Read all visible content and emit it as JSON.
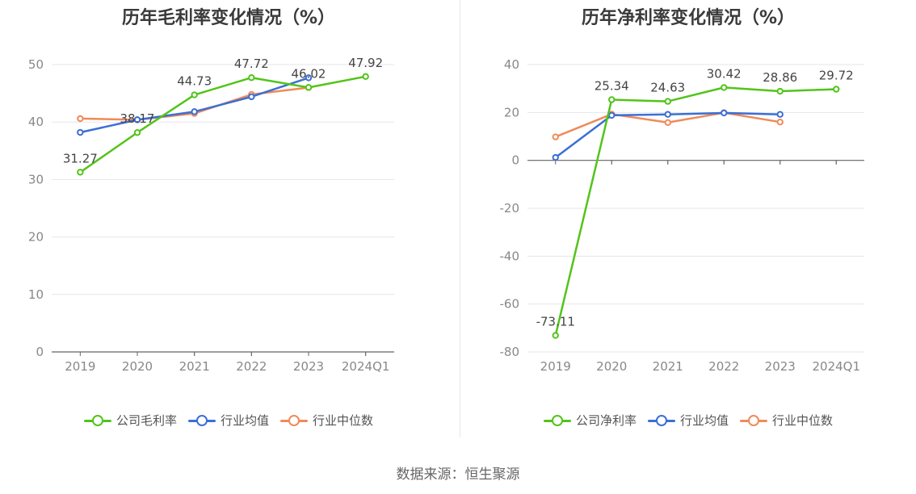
{
  "chart_data": [
    {
      "type": "line",
      "title": "历年毛利率变化情况（%）",
      "categories": [
        "2019",
        "2020",
        "2021",
        "2022",
        "2023",
        "2024Q1"
      ],
      "ylim": [
        0,
        50
      ],
      "yticks": [
        0,
        10,
        20,
        30,
        40,
        50
      ],
      "grid": true,
      "legend_position": "bottom",
      "series": [
        {
          "name": "公司毛利率",
          "color": "#52c41a",
          "values": [
            31.27,
            38.17,
            44.73,
            47.72,
            46.02,
            47.92
          ],
          "labels": [
            "31.27",
            "38.17",
            "44.73",
            "47.72",
            "46.02",
            "47.92"
          ]
        },
        {
          "name": "行业均值",
          "color": "#3b6fd4",
          "values": [
            38.2,
            40.4,
            41.8,
            44.4,
            47.7,
            null
          ]
        },
        {
          "name": "行业中位数",
          "color": "#f08a5a",
          "values": [
            40.6,
            40.4,
            41.5,
            44.8,
            46.0,
            null
          ]
        }
      ]
    },
    {
      "type": "line",
      "title": "历年净利率变化情况（%）",
      "categories": [
        "2019",
        "2020",
        "2021",
        "2022",
        "2023",
        "2024Q1"
      ],
      "ylim": [
        -80,
        40
      ],
      "yticks": [
        -80,
        -60,
        -40,
        -20,
        0,
        20,
        40
      ],
      "grid": true,
      "legend_position": "bottom",
      "series": [
        {
          "name": "公司净利率",
          "color": "#52c41a",
          "values": [
            -73.11,
            25.34,
            24.63,
            30.42,
            28.86,
            29.72
          ],
          "labels": [
            "-73.11",
            "25.34",
            "24.63",
            "30.42",
            "28.86",
            "29.72"
          ]
        },
        {
          "name": "行业均值",
          "color": "#3b6fd4",
          "values": [
            1.2,
            18.8,
            19.2,
            19.8,
            19.2,
            null
          ]
        },
        {
          "name": "行业中位数",
          "color": "#f08a5a",
          "values": [
            9.8,
            19.3,
            15.8,
            19.9,
            16.0,
            null
          ]
        }
      ]
    }
  ],
  "source": "数据来源：恒生聚源"
}
